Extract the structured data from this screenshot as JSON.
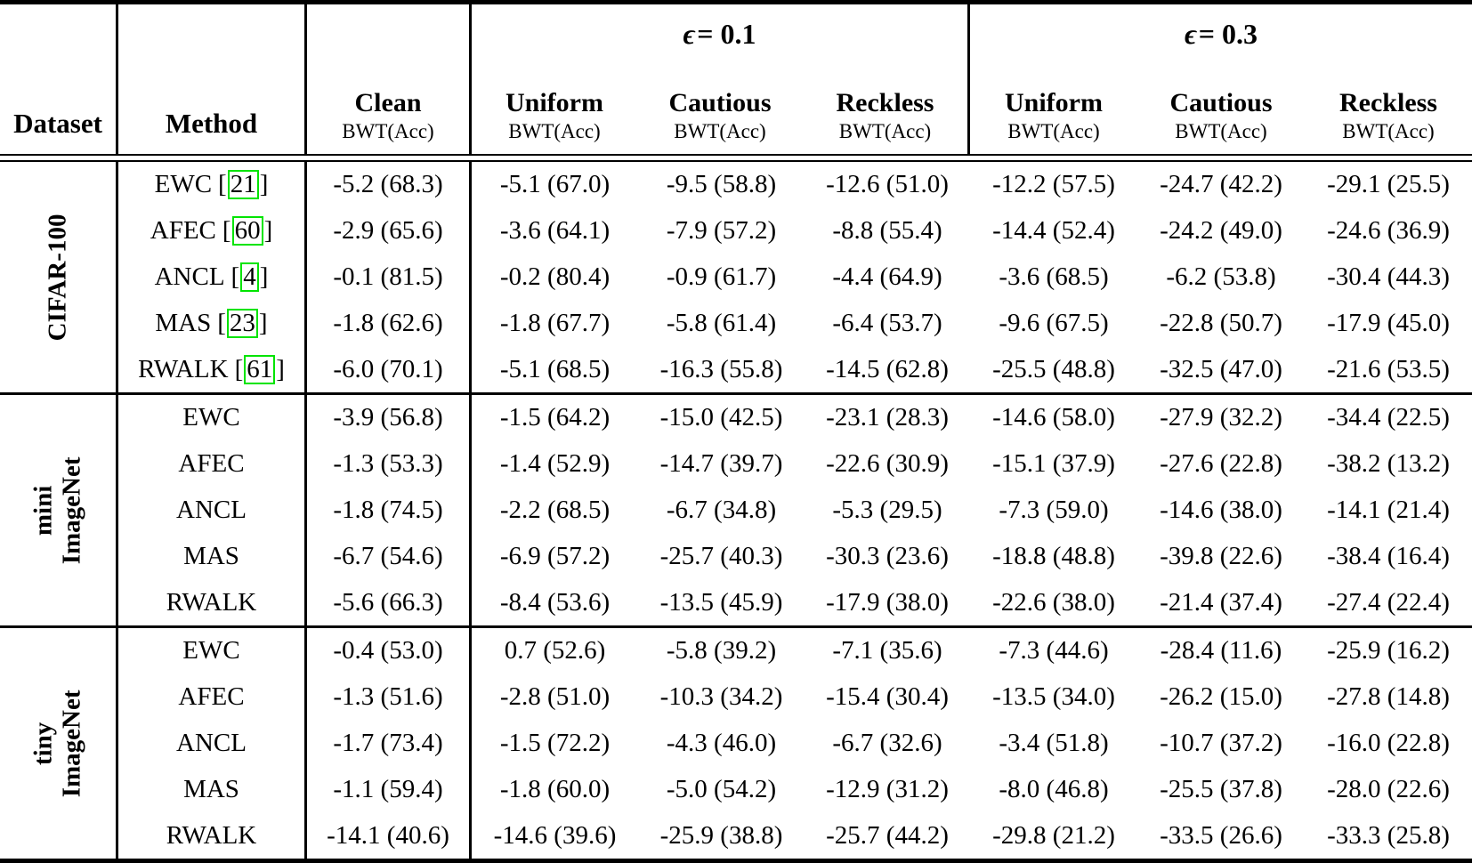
{
  "header": {
    "dataset": "Dataset",
    "method": "Method",
    "clean": {
      "label": "Clean",
      "sub": "BWT(Acc)"
    },
    "groups": [
      {
        "symbol": "ϵ",
        "title_rest": "= 0.1",
        "cols": [
          {
            "label": "Uniform",
            "sub": "BWT(Acc)"
          },
          {
            "label": "Cautious",
            "sub": "BWT(Acc)"
          },
          {
            "label": "Reckless",
            "sub": "BWT(Acc)"
          }
        ]
      },
      {
        "symbol": "ϵ",
        "title_rest": "= 0.3",
        "cols": [
          {
            "label": "Uniform",
            "sub": "BWT(Acc)"
          },
          {
            "label": "Cautious",
            "sub": "BWT(Acc)"
          },
          {
            "label": "Reckless",
            "sub": "BWT(Acc)"
          }
        ]
      }
    ]
  },
  "citation": {
    "open": "[",
    "close": "]"
  },
  "colors": {
    "rule": "#000000",
    "citation_border": "#00E400"
  },
  "sections": [
    {
      "dataset_lines": [
        "CIFAR-100"
      ],
      "rows": [
        {
          "method": "EWC",
          "cite": "21",
          "values": [
            "-5.2 (68.3)",
            "-5.1 (67.0)",
            "-9.5 (58.8)",
            "-12.6 (51.0)",
            "-12.2 (57.5)",
            "-24.7 (42.2)",
            "-29.1 (25.5)"
          ]
        },
        {
          "method": "AFEC",
          "cite": "60",
          "values": [
            "-2.9 (65.6)",
            "-3.6 (64.1)",
            "-7.9 (57.2)",
            "-8.8 (55.4)",
            "-14.4 (52.4)",
            "-24.2 (49.0)",
            "-24.6 (36.9)"
          ]
        },
        {
          "method": "ANCL",
          "cite": "4",
          "values": [
            "-0.1 (81.5)",
            "-0.2 (80.4)",
            "-0.9 (61.7)",
            "-4.4 (64.9)",
            "-3.6 (68.5)",
            "-6.2 (53.8)",
            "-30.4 (44.3)"
          ]
        },
        {
          "method": "MAS",
          "cite": "23",
          "values": [
            "-1.8 (62.6)",
            "-1.8 (67.7)",
            "-5.8 (61.4)",
            "-6.4 (53.7)",
            "-9.6 (67.5)",
            "-22.8 (50.7)",
            "-17.9 (45.0)"
          ]
        },
        {
          "method": "RWALK",
          "cite": "61",
          "values": [
            "-6.0 (70.1)",
            "-5.1 (68.5)",
            "-16.3 (55.8)",
            "-14.5 (62.8)",
            "-25.5 (48.8)",
            "-32.5 (47.0)",
            "-21.6 (53.5)"
          ]
        }
      ]
    },
    {
      "dataset_lines": [
        "mini",
        "ImageNet"
      ],
      "rows": [
        {
          "method": "EWC",
          "values": [
            "-3.9 (56.8)",
            "-1.5 (64.2)",
            "-15.0 (42.5)",
            "-23.1 (28.3)",
            "-14.6 (58.0)",
            "-27.9 (32.2)",
            "-34.4 (22.5)"
          ]
        },
        {
          "method": "AFEC",
          "values": [
            "-1.3 (53.3)",
            "-1.4 (52.9)",
            "-14.7 (39.7)",
            "-22.6 (30.9)",
            "-15.1 (37.9)",
            "-27.6 (22.8)",
            "-38.2 (13.2)"
          ]
        },
        {
          "method": "ANCL",
          "values": [
            "-1.8 (74.5)",
            "-2.2 (68.5)",
            "-6.7 (34.8)",
            "-5.3 (29.5)",
            "-7.3 (59.0)",
            "-14.6 (38.0)",
            "-14.1 (21.4)"
          ]
        },
        {
          "method": "MAS",
          "values": [
            "-6.7 (54.6)",
            "-6.9 (57.2)",
            "-25.7 (40.3)",
            "-30.3 (23.6)",
            "-18.8 (48.8)",
            "-39.8 (22.6)",
            "-38.4 (16.4)"
          ]
        },
        {
          "method": "RWALK",
          "values": [
            "-5.6 (66.3)",
            "-8.4 (53.6)",
            "-13.5 (45.9)",
            "-17.9 (38.0)",
            "-22.6 (38.0)",
            "-21.4 (37.4)",
            "-27.4 (22.4)"
          ]
        }
      ]
    },
    {
      "dataset_lines": [
        "tiny",
        "ImageNet"
      ],
      "rows": [
        {
          "method": "EWC",
          "values": [
            "-0.4 (53.0)",
            "0.7 (52.6)",
            "-5.8 (39.2)",
            "-7.1 (35.6)",
            "-7.3 (44.6)",
            "-28.4 (11.6)",
            "-25.9 (16.2)"
          ]
        },
        {
          "method": "AFEC",
          "values": [
            "-1.3 (51.6)",
            "-2.8 (51.0)",
            "-10.3 (34.2)",
            "-15.4 (30.4)",
            "-13.5 (34.0)",
            "-26.2 (15.0)",
            "-27.8 (14.8)"
          ]
        },
        {
          "method": "ANCL",
          "values": [
            "-1.7 (73.4)",
            "-1.5 (72.2)",
            "-4.3 (46.0)",
            "-6.7 (32.6)",
            "-3.4 (51.8)",
            "-10.7 (37.2)",
            "-16.0 (22.8)"
          ]
        },
        {
          "method": "MAS",
          "values": [
            "-1.1 (59.4)",
            "-1.8 (60.0)",
            "-5.0 (54.2)",
            "-12.9 (31.2)",
            "-8.0 (46.8)",
            "-25.5 (37.8)",
            "-28.0 (22.6)"
          ]
        },
        {
          "method": "RWALK",
          "values": [
            "-14.1 (40.6)",
            "-14.6 (39.6)",
            "-25.9 (38.8)",
            "-25.7 (44.2)",
            "-29.8 (21.2)",
            "-33.5 (26.6)",
            "-33.3 (25.8)"
          ]
        }
      ]
    }
  ]
}
